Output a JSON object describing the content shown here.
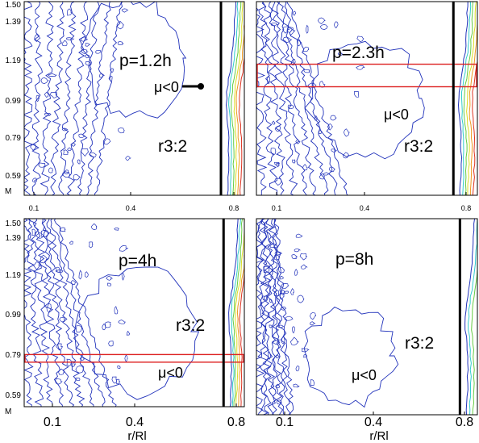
{
  "chart_data": [
    {
      "type": "contour",
      "panel": "top-left",
      "xlabel": "",
      "ylabel": "M",
      "x_ticks": [
        "0.1",
        "0.4",
        "0.8"
      ],
      "y_ticks": [
        "0.59",
        "0.79",
        "0.99",
        "1.19",
        "1.39",
        "1.50"
      ],
      "annotations": [
        "p=1.2h",
        "μ<0",
        "r3:2"
      ],
      "resonance_r": 0.75,
      "arrow": true,
      "highlight_band": null
    },
    {
      "type": "contour",
      "panel": "top-right",
      "xlabel": "",
      "ylabel": "",
      "x_ticks": [
        "0.1",
        "0.4",
        "0.8"
      ],
      "y_ticks": [],
      "annotations": [
        "p=2.3h",
        "μ<0",
        "r3:2"
      ],
      "resonance_r": 0.75,
      "arrow": false,
      "highlight_band": [
        1.06,
        1.18
      ]
    },
    {
      "type": "contour",
      "panel": "bottom-left",
      "xlabel": "r/Rl",
      "ylabel": "M",
      "x_ticks": [
        "0.1",
        "0.4",
        "0.8"
      ],
      "y_ticks": [
        "0.59",
        "0.79",
        "0.99",
        "1.19",
        "1.39",
        "1.50"
      ],
      "annotations": [
        "p=4h",
        "μ<0",
        "r3:2"
      ],
      "resonance_r": 0.75,
      "arrow": false,
      "highlight_band": [
        0.76,
        0.8
      ]
    },
    {
      "type": "contour",
      "panel": "bottom-right",
      "xlabel": "r/Rl",
      "ylabel": "",
      "x_ticks": [
        "0.1",
        "0.4",
        "0.8"
      ],
      "y_ticks": [],
      "annotations": [
        "p=8h",
        "μ<0",
        "r3:2"
      ],
      "resonance_r": 0.78,
      "arrow": false,
      "highlight_band": null
    }
  ],
  "colors": {
    "contour": "#2233bb",
    "resonance": "#000000",
    "highlight": "#dd2222",
    "warm": [
      "#33cccc",
      "#66cc44",
      "#dddd22",
      "#ee9922",
      "#dd3322"
    ]
  }
}
